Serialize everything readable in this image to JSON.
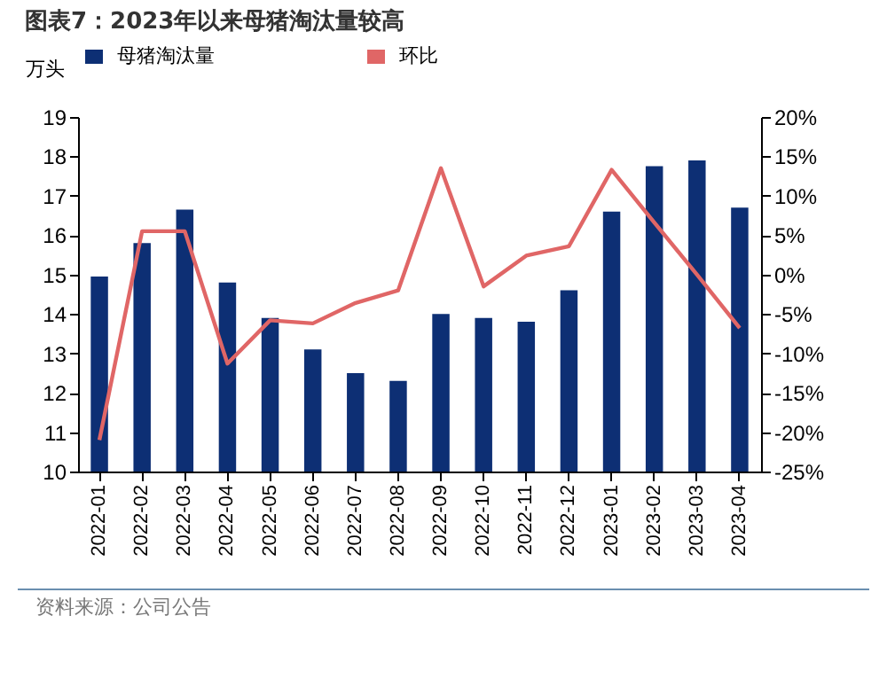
{
  "chart_data": {
    "type": "bar",
    "title": "图表7：2023年以来母猪淘汰量较高",
    "ylabel": "万头",
    "categories": [
      "2022-01",
      "2022-02",
      "2022-03",
      "2022-04",
      "2022-05",
      "2022-06",
      "2022-07",
      "2022-08",
      "2022-09",
      "2022-10",
      "2022-11",
      "2022-12",
      "2023-01",
      "2023-02",
      "2023-03",
      "2023-04"
    ],
    "series": [
      {
        "name": "母猪淘汰量",
        "color": "#0d2f74",
        "values": [
          14.95,
          15.8,
          16.65,
          14.8,
          13.9,
          13.1,
          12.5,
          12.3,
          14.0,
          13.9,
          13.8,
          14.6,
          16.6,
          17.75,
          17.9,
          16.7
        ]
      },
      {
        "name": "环比",
        "type": "line",
        "axis": "y2",
        "color": "#e06666",
        "values": [
          -21,
          5.5,
          5.5,
          -11.3,
          -5.8,
          -6.2,
          -3.6,
          -2,
          13.5,
          -1.5,
          2.4,
          3.6,
          13.3,
          6.6,
          0,
          -6.8
        ]
      }
    ],
    "ylim": [
      10,
      19
    ],
    "yticks": [
      10,
      11,
      12,
      13,
      14,
      15,
      16,
      17,
      18,
      19
    ],
    "y2lim": [
      -25,
      20
    ],
    "y2ticks": [
      {
        "value": -25,
        "label": "-25%"
      },
      {
        "value": -20,
        "label": "-20%"
      },
      {
        "value": -15,
        "label": "-15%"
      },
      {
        "value": -10,
        "label": "-10%"
      },
      {
        "value": -5,
        "label": "-5%"
      },
      {
        "value": 0,
        "label": "0%"
      },
      {
        "value": 5,
        "label": "5%"
      },
      {
        "value": 10,
        "label": "10%"
      },
      {
        "value": 15,
        "label": "15%"
      },
      {
        "value": 20,
        "label": "20%"
      }
    ],
    "legend": "top",
    "grid": false,
    "marker": "none",
    "annotations": [
      "资料来源：公司公告"
    ]
  }
}
